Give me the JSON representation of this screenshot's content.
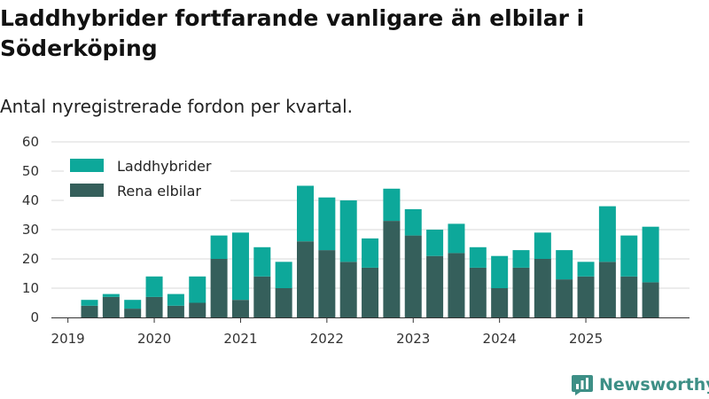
{
  "title": "Laddhybrider fortfarande vanligare än elbilar i Söderköping",
  "subtitle": "Antal nyregistrerade fordon per kvartal.",
  "brand": {
    "name": "Newsworthy",
    "icon": "newsworthy-logo-icon",
    "color": "#3d8f86"
  },
  "colors": {
    "phev": "#0da89a",
    "ev": "#355f5b",
    "grid": "#d9d9d9",
    "axis": "#333333"
  },
  "chart_data": {
    "type": "bar",
    "stacked": true,
    "title": "Laddhybrider fortfarande vanligare än elbilar i Söderköping",
    "subtitle": "Antal nyregistrerade fordon per kvartal.",
    "xlabel": "",
    "ylabel": "",
    "ylim": [
      0,
      60
    ],
    "yticks": [
      0,
      10,
      20,
      30,
      40,
      50,
      60
    ],
    "xticks": [
      "2019",
      "2020",
      "2021",
      "2022",
      "2023",
      "2024",
      "2025"
    ],
    "categories": [
      "2019 Q2",
      "2019 Q3",
      "2019 Q4",
      "2020 Q1",
      "2020 Q2",
      "2020 Q3",
      "2020 Q4",
      "2021 Q1",
      "2021 Q2",
      "2021 Q3",
      "2021 Q4",
      "2022 Q1",
      "2022 Q2",
      "2022 Q3",
      "2022 Q4",
      "2023 Q1",
      "2023 Q2",
      "2023 Q3",
      "2023 Q4",
      "2024 Q1",
      "2024 Q2",
      "2024 Q3",
      "2024 Q4",
      "2025 Q1",
      "2025 Q2",
      "2025 Q3",
      "2025 Q4"
    ],
    "legend_position": "top-left",
    "grid": true,
    "series": [
      {
        "name": "Rena elbilar",
        "color": "#355f5b",
        "values": [
          4,
          7,
          3,
          7,
          4,
          5,
          20,
          6,
          14,
          10,
          26,
          23,
          19,
          17,
          33,
          28,
          21,
          22,
          17,
          10,
          17,
          20,
          13,
          14,
          19,
          14,
          12
        ]
      },
      {
        "name": "Laddhybrider",
        "color": "#0da89a",
        "values": [
          2,
          1,
          3,
          7,
          4,
          9,
          8,
          23,
          10,
          9,
          19,
          18,
          21,
          10,
          11,
          9,
          9,
          10,
          7,
          11,
          6,
          9,
          10,
          5,
          19,
          14,
          19
        ]
      }
    ],
    "legend": [
      "Laddhybrider",
      "Rena elbilar"
    ]
  }
}
